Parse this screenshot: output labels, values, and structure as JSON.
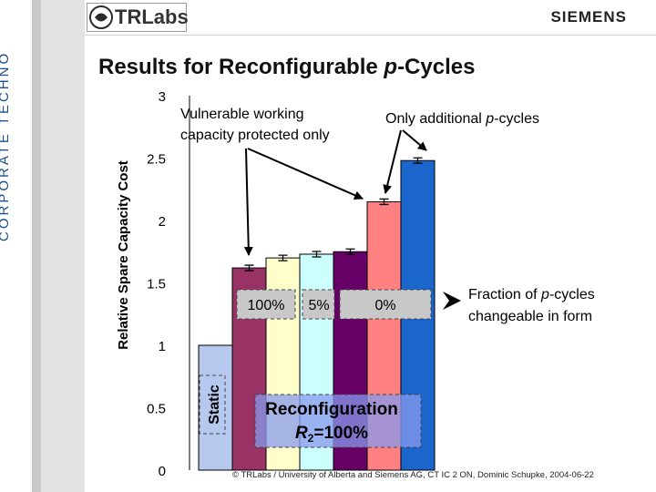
{
  "header": {
    "logo_text": "TRLabs",
    "brand": "SIEMENS",
    "side_text": "CORPORATE TECHNO"
  },
  "slide": {
    "title_prefix": "Results for Reconfigurable ",
    "title_italic": "p",
    "title_suffix": "-Cycles",
    "footer": "© TRLabs / University of Alberta and Siemens AG, CT IC 2 ON, Dominic Schupke, 2004-06-22"
  },
  "chart_data": {
    "type": "bar",
    "ylabel": "Relative Spare Capacity Cost",
    "ylim": [
      0,
      3
    ],
    "yticks": [
      "0",
      "0.5",
      "1",
      "1.5",
      "2",
      "2.5",
      "3"
    ],
    "grid": false,
    "series": [
      {
        "values": [
          1.0
        ],
        "color": "#b7c8ef"
      },
      {
        "values": [
          1.62
        ],
        "color": "#993366"
      },
      {
        "values": [
          1.7
        ],
        "color": "#ffffcc"
      },
      {
        "values": [
          1.73
        ],
        "color": "#ccffff"
      },
      {
        "values": [
          1.75
        ],
        "color": "#660066"
      },
      {
        "values": [
          2.15
        ],
        "color": "#ff8080"
      },
      {
        "values": [
          2.48
        ],
        "color": "#1a66cc"
      }
    ],
    "annotations": {
      "vulnerable_line1": "Vulnerable working",
      "vulnerable_line2": "capacity protected only",
      "only_additional_prefix": "Only additional ",
      "only_additional_italic": "p",
      "only_additional_suffix": "-cycles",
      "fraction_line1_prefix": "Fraction of ",
      "fraction_line1_italic": "p",
      "fraction_line1_suffix": "-cycles",
      "fraction_line2": "changeable in form",
      "box_100": "100%",
      "box_5": "5%",
      "box_0": "0%",
      "static_label": "Static",
      "reconfig_line1": "Reconfiguration",
      "reconfig_R": "R",
      "reconfig_sub": "2",
      "reconfig_tail": "=100%"
    }
  }
}
